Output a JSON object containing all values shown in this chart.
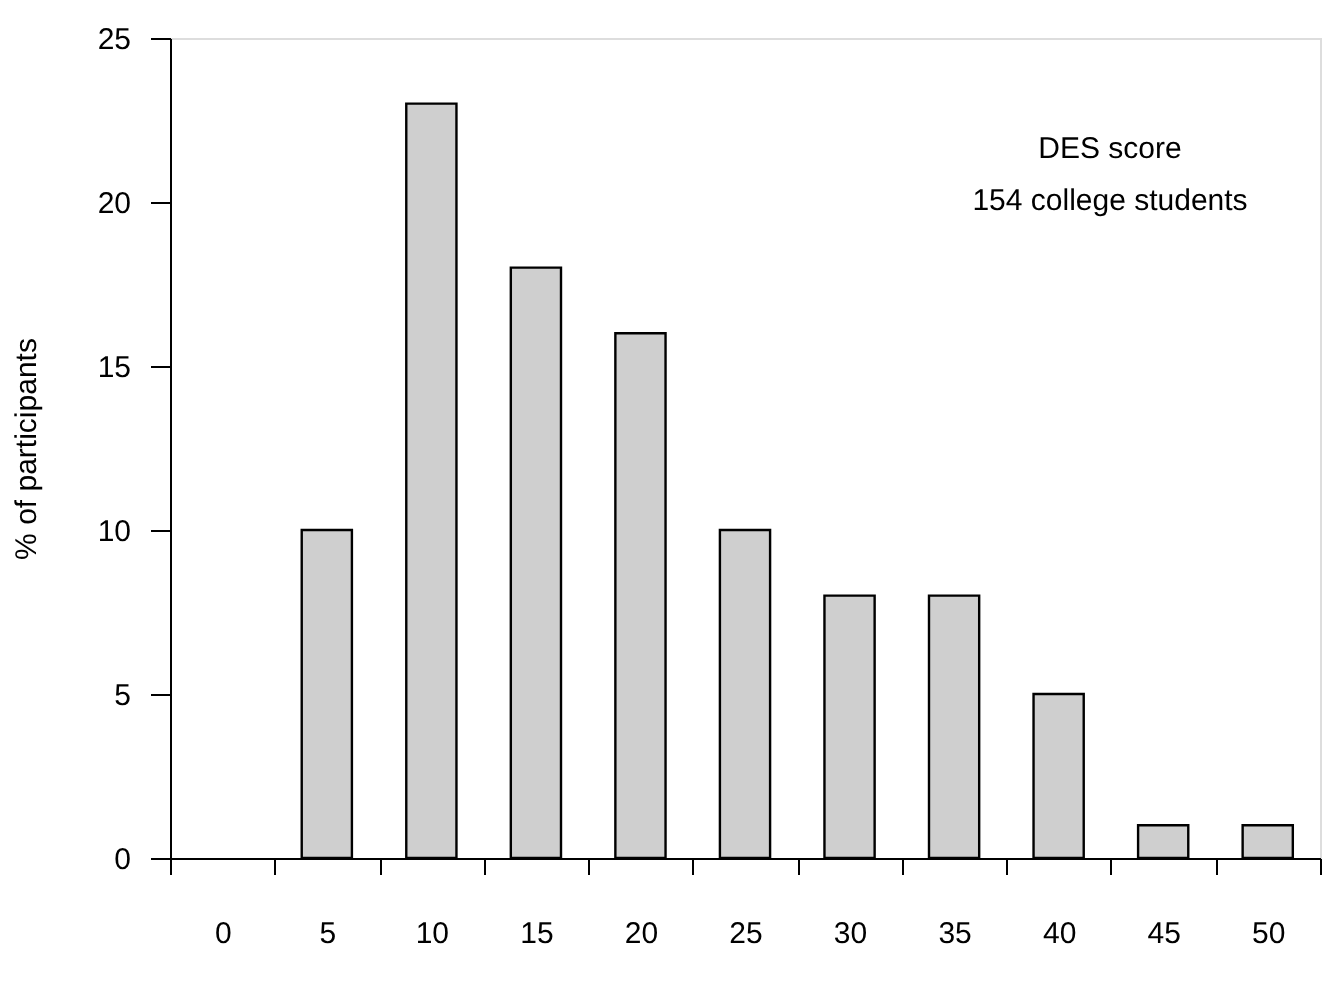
{
  "chart_data": {
    "type": "bar",
    "ylabel": "% of participants",
    "categories": [
      "0",
      "5",
      "10",
      "15",
      "20",
      "25",
      "30",
      "35",
      "40",
      "45",
      "50"
    ],
    "values": [
      null,
      10,
      23,
      18,
      16,
      10,
      8,
      8,
      5,
      1,
      1
    ],
    "color": "#cfcfcf",
    "ylim": [
      0,
      25
    ],
    "yticks": [
      0,
      5,
      10,
      15,
      20,
      25
    ],
    "grid": false,
    "annotations": [
      "DES score",
      "154 college students"
    ]
  }
}
